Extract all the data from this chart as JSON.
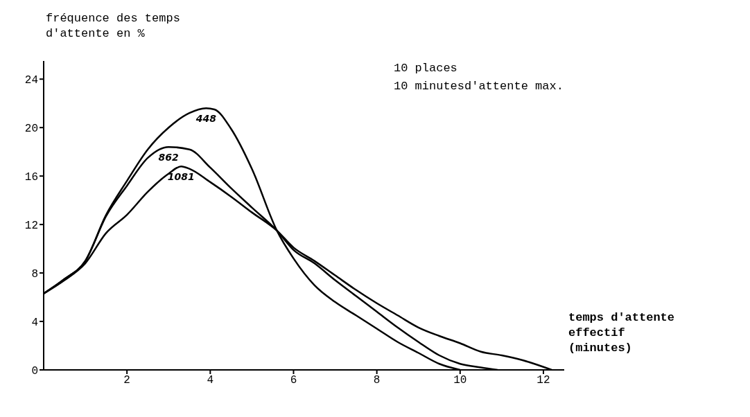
{
  "chart_data": {
    "type": "line",
    "xlabel": "temps d'attente effectif (minutes)",
    "ylabel": "fréquence des temps d'attente en %",
    "annotations": [
      "10 places",
      "10 minutesd'attente max."
    ],
    "xlim": [
      0,
      12.5
    ],
    "xticks": [
      2,
      4,
      6,
      8,
      10,
      12
    ],
    "ylim": [
      0,
      25.5
    ],
    "yticks": [
      0,
      4,
      8,
      12,
      16,
      20,
      24
    ],
    "grid": false,
    "legend": false,
    "marker": "none",
    "line_style": "solid",
    "series": [
      {
        "name": "448",
        "color": "#000000",
        "x": [
          0,
          0.5,
          1,
          1.5,
          2,
          2.5,
          3,
          3.5,
          3.9,
          4.1,
          4.5,
          5,
          5.6,
          6,
          6.5,
          7,
          7.5,
          8,
          8.5,
          9,
          9.5,
          10
        ],
        "values": [
          6.3,
          7.5,
          9,
          12.8,
          15.6,
          18.2,
          20,
          21.2,
          21.6,
          21.5,
          19.9,
          16.6,
          11.5,
          9.2,
          7,
          5.6,
          4.5,
          3.4,
          2.3,
          1.4,
          0.5,
          0
        ]
      },
      {
        "name": "862",
        "color": "#000000",
        "x": [
          0,
          0.5,
          1,
          1.5,
          2,
          2.5,
          3,
          3.5,
          4,
          4.5,
          5,
          5.6,
          6,
          6.5,
          7,
          7.5,
          8,
          8.5,
          9,
          9.5,
          10,
          10.5,
          10.9
        ],
        "values": [
          6.3,
          7.5,
          9,
          12.7,
          15.2,
          17.5,
          18.4,
          18.2,
          16.7,
          15,
          13.4,
          11.5,
          9.9,
          8.8,
          7.4,
          6.1,
          4.8,
          3.5,
          2.3,
          1.2,
          0.5,
          0.2,
          0
        ]
      },
      {
        "name": "1081",
        "color": "#000000",
        "x": [
          0,
          0.5,
          1,
          1.5,
          2,
          2.5,
          3,
          3.3,
          3.5,
          4,
          4.5,
          5,
          5.6,
          6,
          6.5,
          7,
          7.5,
          8,
          8.5,
          9,
          9.5,
          10,
          10.5,
          11,
          11.5,
          12.2
        ],
        "values": [
          6.3,
          7.4,
          8.8,
          11.3,
          12.8,
          14.7,
          16.2,
          16.8,
          16.6,
          15.5,
          14.3,
          13,
          11.5,
          10.1,
          9,
          7.8,
          6.6,
          5.5,
          4.5,
          3.5,
          2.8,
          2.2,
          1.5,
          1.2,
          0.8,
          0
        ]
      }
    ]
  }
}
